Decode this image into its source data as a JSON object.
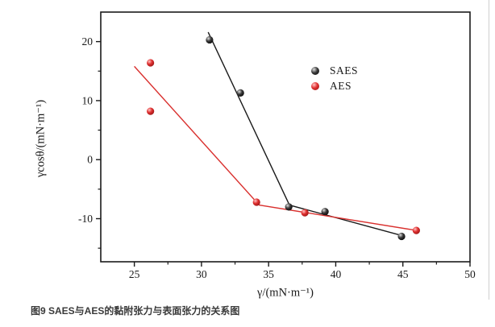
{
  "page": {
    "caption": "图9 SAES与AES的黏附张力与表面张力的关系图"
  },
  "chart_data": {
    "type": "scatter",
    "title": "",
    "xlabel": "γ/(mN·m⁻¹)",
    "ylabel": "γcosθ/(mN·m⁻¹)",
    "xlim": [
      22.5,
      50
    ],
    "ylim": [
      -17.3,
      25
    ],
    "x_major_ticks": [
      25,
      30,
      35,
      40,
      45,
      50
    ],
    "x_minor_ticks": [
      27.5,
      32.5,
      37.5,
      42.5,
      47.5
    ],
    "y_major_ticks": [
      -10,
      0,
      10,
      20
    ],
    "y_minor_ticks": [
      -15,
      -5,
      5,
      15
    ],
    "grid": false,
    "legend_position": "inside-upper-right",
    "frame_color": "#1a1a1a",
    "series": [
      {
        "name": "SAES",
        "color": "#1a1a1a",
        "marker": "sphere",
        "marker_colors": [
          "#e0e0e0",
          "#3a3a3a",
          "#000000"
        ],
        "points": [
          [
            30.6,
            20.3
          ],
          [
            32.9,
            11.3
          ],
          [
            36.5,
            -8.0
          ],
          [
            39.2,
            -8.8
          ],
          [
            44.9,
            -13.0
          ]
        ],
        "fit_line": [
          [
            30.5,
            21.6
          ],
          [
            36.55,
            -7.7
          ],
          [
            45.0,
            -12.9
          ]
        ]
      },
      {
        "name": "AES",
        "color": "#d9302e",
        "marker": "sphere",
        "marker_colors": [
          "#ffc4c4",
          "#e03030",
          "#8f1212"
        ],
        "points": [
          [
            26.2,
            16.4
          ],
          [
            26.2,
            8.2
          ],
          [
            34.1,
            -7.2
          ],
          [
            37.7,
            -9.0
          ],
          [
            46.0,
            -12.0
          ]
        ],
        "fit_line": [
          [
            25.0,
            15.8
          ],
          [
            34.3,
            -7.7
          ],
          [
            46.05,
            -12.0
          ]
        ]
      }
    ]
  }
}
